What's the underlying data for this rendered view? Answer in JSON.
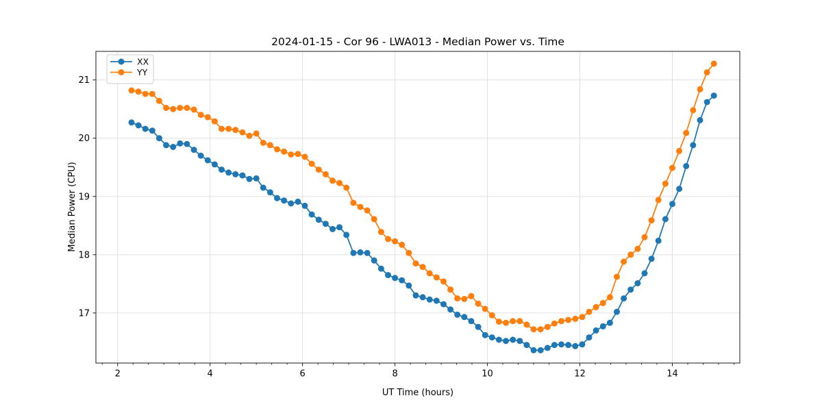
{
  "chart_data": {
    "type": "line",
    "title": "2024-01-15 - Cor 96 - LWA013 - Median Power vs. Time",
    "xlabel": "UT Time (hours)",
    "ylabel": "Median Power (CPU)",
    "xlim": [
      1.53,
      15.46
    ],
    "ylim": [
      16.14,
      21.49
    ],
    "xticks": [
      2,
      4,
      6,
      8,
      10,
      12,
      14
    ],
    "yticks": [
      17,
      18,
      19,
      20,
      21
    ],
    "x_minor_step": 0.3333,
    "grid": true,
    "grid_color": "#e0e0e0",
    "legend_position": "upper left",
    "marker": "circle",
    "x": [
      2.3,
      2.45,
      2.6,
      2.75,
      2.9,
      3.05,
      3.2,
      3.35,
      3.5,
      3.65,
      3.8,
      3.95,
      4.1,
      4.25,
      4.4,
      4.55,
      4.7,
      4.85,
      5.0,
      5.15,
      5.3,
      5.45,
      5.6,
      5.75,
      5.9,
      6.05,
      6.2,
      6.35,
      6.5,
      6.65,
      6.8,
      6.95,
      7.1,
      7.25,
      7.4,
      7.55,
      7.7,
      7.85,
      8.0,
      8.15,
      8.3,
      8.45,
      8.6,
      8.75,
      8.9,
      9.05,
      9.2,
      9.35,
      9.5,
      9.65,
      9.8,
      9.95,
      10.1,
      10.25,
      10.4,
      10.55,
      10.7,
      10.85,
      11.0,
      11.15,
      11.3,
      11.45,
      11.6,
      11.75,
      11.9,
      12.05,
      12.2,
      12.35,
      12.5,
      12.65,
      12.8,
      12.95,
      13.1,
      13.25,
      13.4,
      13.55,
      13.7,
      13.85,
      14.0,
      14.15,
      14.3,
      14.45,
      14.6,
      14.75,
      14.9
    ],
    "series": [
      {
        "name": "XX",
        "color": "#1f77b4",
        "values": [
          20.27,
          20.22,
          20.16,
          20.13,
          20.0,
          19.88,
          19.85,
          19.91,
          19.9,
          19.8,
          19.7,
          19.62,
          19.55,
          19.46,
          19.41,
          19.38,
          19.36,
          19.3,
          19.31,
          19.15,
          19.07,
          18.97,
          18.93,
          18.88,
          18.91,
          18.84,
          18.69,
          18.6,
          18.53,
          18.44,
          18.47,
          18.34,
          18.03,
          18.04,
          18.03,
          17.9,
          17.76,
          17.65,
          17.6,
          17.56,
          17.47,
          17.3,
          17.27,
          17.23,
          17.21,
          17.15,
          17.06,
          16.97,
          16.93,
          16.86,
          16.76,
          16.62,
          16.58,
          16.54,
          16.52,
          16.54,
          16.52,
          16.45,
          16.36,
          16.36,
          16.4,
          16.45,
          16.46,
          16.45,
          16.43,
          16.46,
          16.58,
          16.7,
          16.77,
          16.83,
          17.02,
          17.25,
          17.4,
          17.51,
          17.68,
          17.93,
          18.24,
          18.61,
          18.87,
          19.13,
          19.52,
          19.88,
          20.31,
          20.62,
          20.73
        ]
      },
      {
        "name": "YY",
        "color": "#ff7f0e",
        "values": [
          20.82,
          20.8,
          20.76,
          20.76,
          20.64,
          20.52,
          20.5,
          20.52,
          20.52,
          20.49,
          20.4,
          20.36,
          20.29,
          20.16,
          20.16,
          20.14,
          20.1,
          20.04,
          20.08,
          19.92,
          19.88,
          19.81,
          19.77,
          19.72,
          19.73,
          19.68,
          19.56,
          19.46,
          19.38,
          19.27,
          19.23,
          19.15,
          18.89,
          18.82,
          18.76,
          18.61,
          18.39,
          18.27,
          18.23,
          18.17,
          18.03,
          17.85,
          17.79,
          17.68,
          17.61,
          17.54,
          17.4,
          17.25,
          17.24,
          17.29,
          17.16,
          17.07,
          16.96,
          16.85,
          16.83,
          16.86,
          16.86,
          16.8,
          16.72,
          16.72,
          16.76,
          16.82,
          16.86,
          16.88,
          16.9,
          16.93,
          17.02,
          17.1,
          17.17,
          17.27,
          17.62,
          17.88,
          18.0,
          18.1,
          18.3,
          18.59,
          18.94,
          19.22,
          19.49,
          19.78,
          20.09,
          20.48,
          20.84,
          21.13,
          21.28
        ]
      }
    ]
  },
  "legend": {
    "items": [
      {
        "label": "XX"
      },
      {
        "label": "YY"
      }
    ]
  }
}
